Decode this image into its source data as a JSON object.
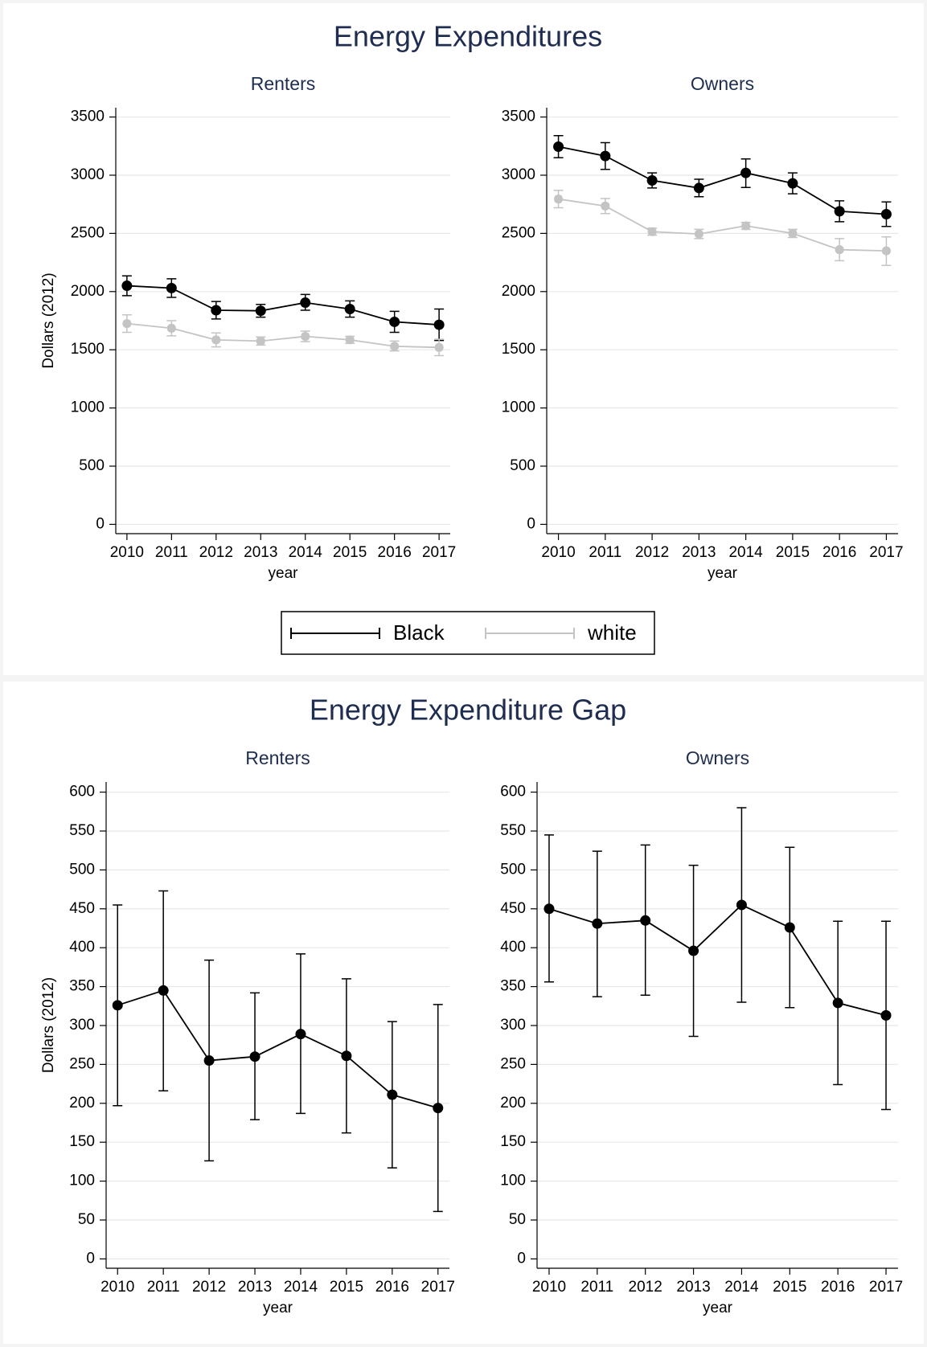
{
  "figure_titles": [
    "Energy Expenditures",
    "Energy Expenditure Gap"
  ],
  "chart_data": [
    {
      "type": "line",
      "title": "Renters",
      "x_label": "year",
      "y_label": "Dollars (2012)",
      "x": [
        2010,
        2011,
        2012,
        2013,
        2014,
        2015,
        2016,
        2017
      ],
      "xlim": [
        2009.75,
        2017.25
      ],
      "xticks": [
        2010,
        2011,
        2012,
        2013,
        2014,
        2015,
        2016,
        2017
      ],
      "ylim": [
        -80,
        3580
      ],
      "yticks": [
        0,
        500,
        1000,
        1500,
        2000,
        2500,
        3000,
        3500
      ],
      "grid": true,
      "series": [
        {
          "name": "Black",
          "color": "#000000",
          "values": [
            2050,
            2030,
            1840,
            1835,
            1905,
            1850,
            1740,
            1715
          ],
          "lower": [
            1965,
            1950,
            1765,
            1780,
            1840,
            1780,
            1650,
            1580
          ],
          "upper": [
            2135,
            2110,
            1915,
            1890,
            1975,
            1920,
            1830,
            1850
          ]
        },
        {
          "name": "white",
          "color": "#c4c4c4",
          "values": [
            1725,
            1685,
            1585,
            1575,
            1615,
            1585,
            1530,
            1520
          ],
          "lower": [
            1650,
            1620,
            1525,
            1540,
            1570,
            1555,
            1490,
            1450
          ],
          "upper": [
            1800,
            1750,
            1645,
            1610,
            1660,
            1615,
            1575,
            1590
          ]
        }
      ]
    },
    {
      "type": "line",
      "title": "Owners",
      "x_label": "year",
      "x": [
        2010,
        2011,
        2012,
        2013,
        2014,
        2015,
        2016,
        2017
      ],
      "xlim": [
        2009.75,
        2017.25
      ],
      "xticks": [
        2010,
        2011,
        2012,
        2013,
        2014,
        2015,
        2016,
        2017
      ],
      "ylim": [
        -80,
        3580
      ],
      "yticks": [
        0,
        500,
        1000,
        1500,
        2000,
        2500,
        3000,
        3500
      ],
      "grid": true,
      "series": [
        {
          "name": "Black",
          "color": "#000000",
          "values": [
            3245,
            3165,
            2955,
            2890,
            3020,
            2930,
            2690,
            2665
          ],
          "lower": [
            3150,
            3050,
            2890,
            2815,
            2895,
            2840,
            2600,
            2560
          ],
          "upper": [
            3340,
            3280,
            3020,
            2965,
            3140,
            3020,
            2780,
            2770
          ]
        },
        {
          "name": "white",
          "color": "#c4c4c4",
          "values": [
            2795,
            2735,
            2515,
            2495,
            2565,
            2500,
            2360,
            2350
          ],
          "lower": [
            2720,
            2670,
            2485,
            2455,
            2535,
            2465,
            2265,
            2225
          ],
          "upper": [
            2870,
            2800,
            2545,
            2535,
            2595,
            2535,
            2455,
            2470
          ]
        }
      ]
    },
    {
      "type": "line",
      "title": "Renters",
      "x_label": "year",
      "y_label": "Dollars (2012)",
      "x": [
        2010,
        2011,
        2012,
        2013,
        2014,
        2015,
        2016,
        2017
      ],
      "xlim": [
        2009.75,
        2017.25
      ],
      "xticks": [
        2010,
        2011,
        2012,
        2013,
        2014,
        2015,
        2016,
        2017
      ],
      "ylim": [
        -12,
        613
      ],
      "yticks": [
        0,
        50,
        100,
        150,
        200,
        250,
        300,
        350,
        400,
        450,
        500,
        550,
        600
      ],
      "grid": true,
      "series": [
        {
          "color": "#000000",
          "values": [
            326,
            345,
            255,
            260,
            289,
            261,
            211,
            194
          ],
          "lower": [
            197,
            216,
            126,
            179,
            187,
            162,
            117,
            61
          ],
          "upper": [
            455,
            473,
            384,
            342,
            392,
            360,
            305,
            327
          ]
        }
      ]
    },
    {
      "type": "line",
      "title": "Owners",
      "x_label": "year",
      "x": [
        2010,
        2011,
        2012,
        2013,
        2014,
        2015,
        2016,
        2017
      ],
      "xlim": [
        2009.75,
        2017.25
      ],
      "xticks": [
        2010,
        2011,
        2012,
        2013,
        2014,
        2015,
        2016,
        2017
      ],
      "ylim": [
        -12,
        613
      ],
      "yticks": [
        0,
        50,
        100,
        150,
        200,
        250,
        300,
        350,
        400,
        450,
        500,
        550,
        600
      ],
      "grid": true,
      "series": [
        {
          "color": "#000000",
          "values": [
            450,
            431,
            435,
            396,
            455,
            426,
            329,
            313
          ],
          "lower": [
            356,
            337,
            339,
            286,
            330,
            323,
            224,
            192
          ],
          "upper": [
            545,
            524,
            532,
            506,
            580,
            529,
            434,
            434
          ]
        }
      ]
    }
  ]
}
